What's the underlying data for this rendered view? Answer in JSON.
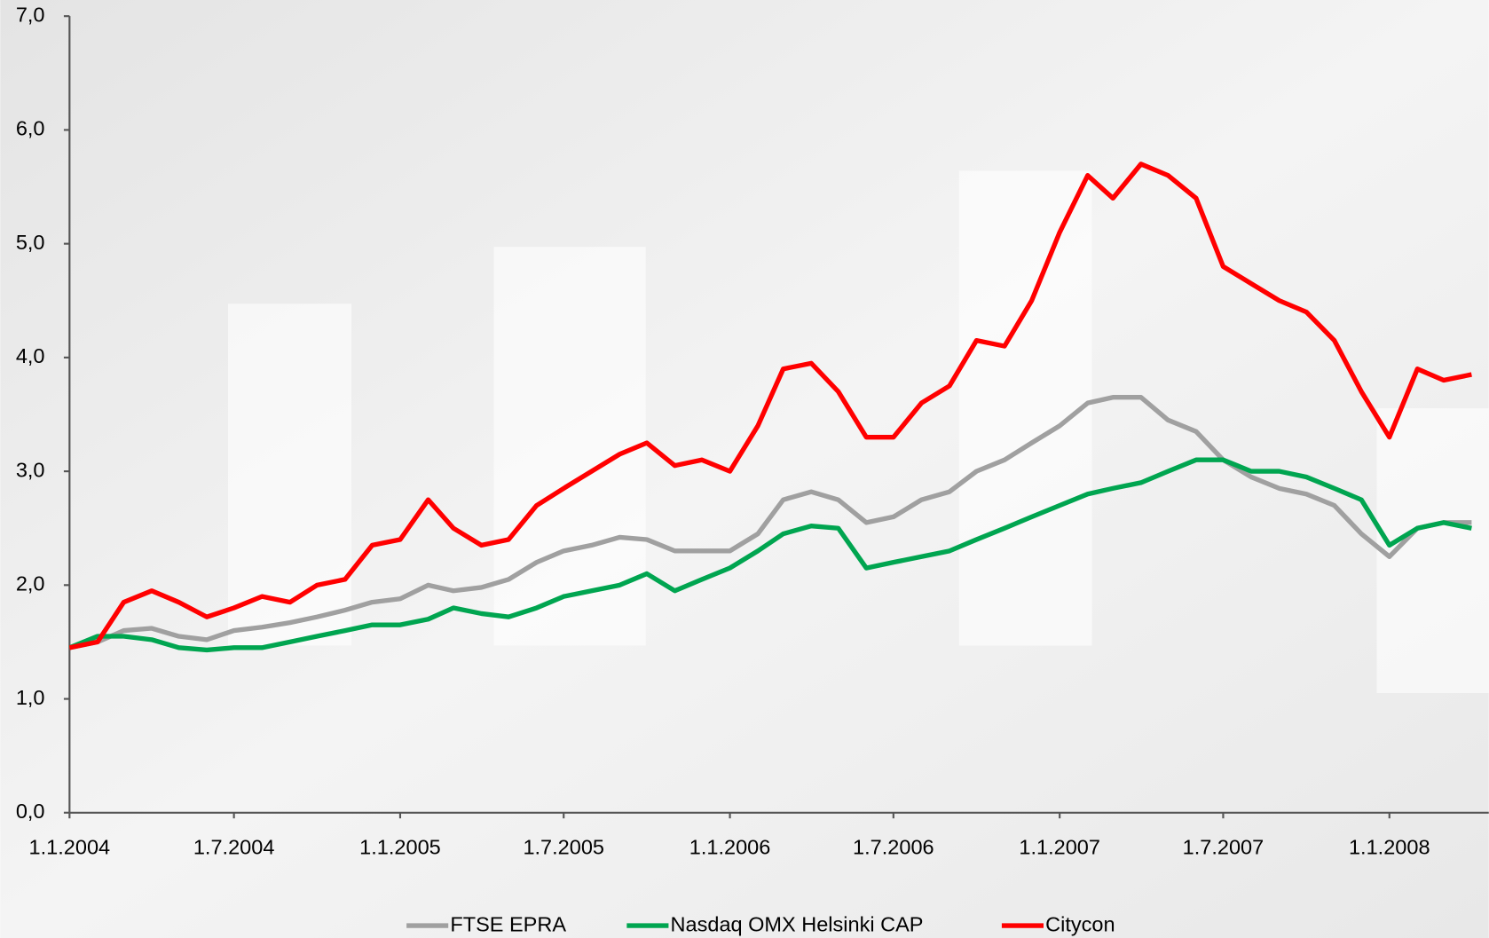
{
  "chart_data": {
    "type": "line",
    "x": [
      "1.1.2004",
      "1.2.2004",
      "1.3.2004",
      "1.4.2004",
      "1.5.2004",
      "1.6.2004",
      "1.7.2004",
      "1.8.2004",
      "1.9.2004",
      "1.10.2004",
      "1.11.2004",
      "1.12.2004",
      "1.1.2005",
      "1.2.2005",
      "1.3.2005",
      "1.4.2005",
      "1.5.2005",
      "1.6.2005",
      "1.7.2005",
      "1.8.2005",
      "1.9.2005",
      "1.10.2005",
      "1.11.2005",
      "1.12.2005",
      "1.1.2006",
      "1.2.2006",
      "1.3.2006",
      "1.4.2006",
      "1.5.2006",
      "1.6.2006",
      "1.7.2006",
      "1.8.2006",
      "1.9.2006",
      "1.10.2006",
      "1.11.2006",
      "1.12.2006",
      "1.1.2007",
      "1.2.2007",
      "1.3.2007",
      "1.4.2007",
      "1.5.2007",
      "1.6.2007",
      "1.7.2007",
      "1.8.2007",
      "1.9.2007",
      "1.10.2007",
      "1.11.2007",
      "1.12.2007",
      "1.1.2008",
      "1.2.2008",
      "1.3.2008",
      "1.4.2008"
    ],
    "series": [
      {
        "name": "FTSE EPRA",
        "color": "#a0a0a0",
        "values": [
          1.45,
          1.5,
          1.6,
          1.62,
          1.55,
          1.52,
          1.6,
          1.63,
          1.67,
          1.72,
          1.78,
          1.85,
          1.88,
          2.0,
          1.95,
          1.98,
          2.05,
          2.2,
          2.3,
          2.35,
          2.42,
          2.4,
          2.3,
          2.3,
          2.3,
          2.45,
          2.75,
          2.82,
          2.75,
          2.55,
          2.6,
          2.75,
          2.82,
          3.0,
          3.1,
          3.25,
          3.4,
          3.6,
          3.65,
          3.65,
          3.45,
          3.35,
          3.1,
          2.95,
          2.85,
          2.8,
          2.7,
          2.45,
          2.25,
          2.5,
          2.55,
          2.55
        ]
      },
      {
        "name": "Nasdaq OMX Helsinki CAP",
        "color": "#00a550",
        "values": [
          1.45,
          1.55,
          1.55,
          1.52,
          1.45,
          1.43,
          1.45,
          1.45,
          1.5,
          1.55,
          1.6,
          1.65,
          1.65,
          1.7,
          1.8,
          1.75,
          1.72,
          1.8,
          1.9,
          1.95,
          2.0,
          2.1,
          1.95,
          2.05,
          2.15,
          2.3,
          2.45,
          2.52,
          2.5,
          2.15,
          2.2,
          2.25,
          2.3,
          2.4,
          2.5,
          2.6,
          2.7,
          2.8,
          2.85,
          2.9,
          3.0,
          3.1,
          3.1,
          3.0,
          3.0,
          2.95,
          2.85,
          2.75,
          2.35,
          2.5,
          2.55,
          2.5
        ]
      },
      {
        "name": "Citycon",
        "color": "#ff0000",
        "values": [
          1.45,
          1.5,
          1.85,
          1.95,
          1.85,
          1.72,
          1.8,
          1.9,
          1.85,
          2.0,
          2.05,
          2.35,
          2.4,
          2.75,
          2.5,
          2.35,
          2.4,
          2.7,
          2.85,
          3.0,
          3.15,
          3.25,
          3.05,
          3.1,
          3.0,
          3.4,
          3.9,
          3.95,
          3.7,
          3.3,
          3.3,
          3.6,
          3.75,
          4.15,
          4.1,
          4.5,
          5.1,
          5.6,
          5.4,
          5.7,
          5.6,
          5.4,
          4.8,
          4.65,
          4.5,
          4.4,
          4.15,
          3.7,
          3.3,
          3.9,
          3.8,
          3.85
        ]
      }
    ],
    "xlim": [
      "1.1.2004",
      "20.4.2008"
    ],
    "xticks": [
      "1.1.2004",
      "1.7.2004",
      "1.1.2005",
      "1.7.2005",
      "1.1.2006",
      "1.7.2006",
      "1.1.2007",
      "1.7.2007",
      "1.1.2008"
    ],
    "ylim": [
      0,
      7
    ],
    "yticks": [
      {
        "value": 0,
        "label": "0,0"
      },
      {
        "value": 1,
        "label": "1,0"
      },
      {
        "value": 2,
        "label": "2,0"
      },
      {
        "value": 3,
        "label": "3,0"
      },
      {
        "value": 4,
        "label": "4,0"
      },
      {
        "value": 5,
        "label": "5,0"
      },
      {
        "value": 6,
        "label": "6,0"
      },
      {
        "value": 7,
        "label": "7,0"
      }
    ],
    "grid": false,
    "legend": "bottom"
  }
}
